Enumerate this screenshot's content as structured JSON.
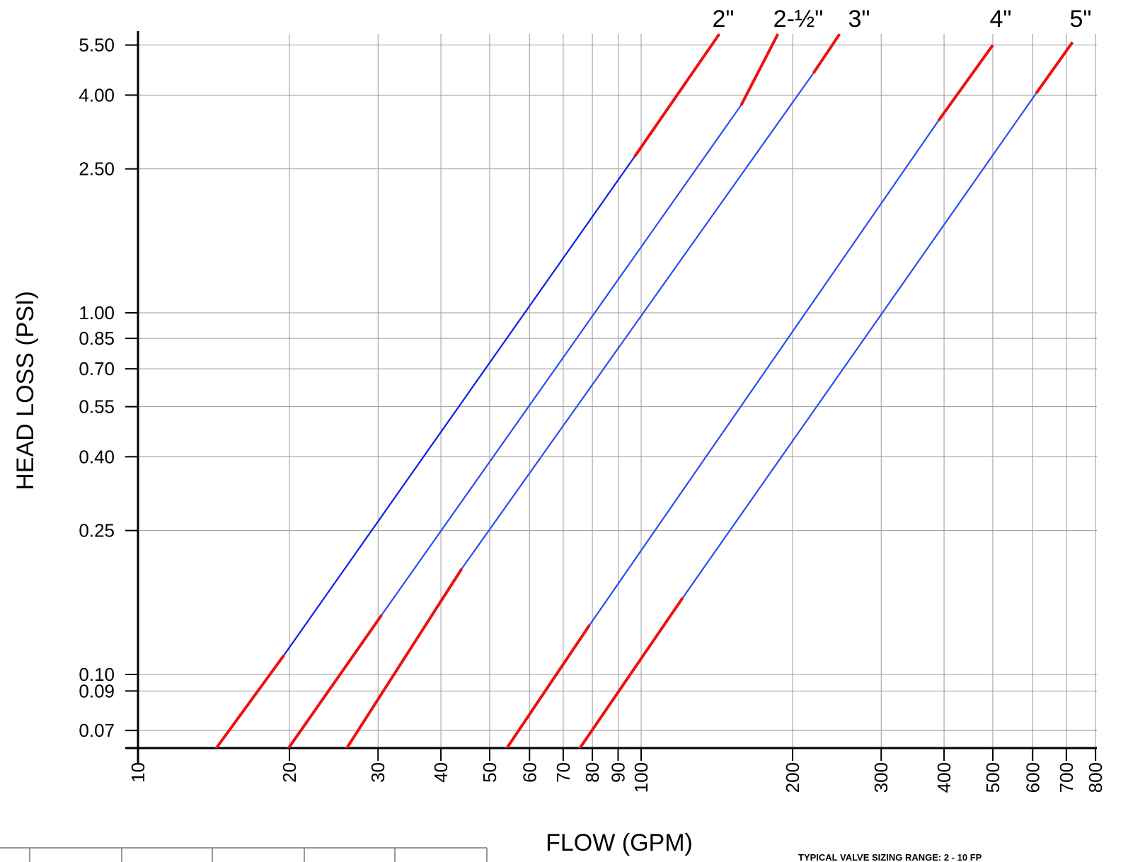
{
  "chart_data": {
    "type": "line",
    "title": "",
    "xlabel": "FLOW (GPM)",
    "ylabel": "HEAD LOSS (PSI)",
    "x_scale": "log",
    "y_scale": "log",
    "xlim": [
      10,
      800
    ],
    "ylim": [
      0.06,
      5.5
    ],
    "grid": true,
    "x_ticks": [
      10,
      20,
      30,
      40,
      50,
      60,
      70,
      80,
      90,
      100,
      200,
      300,
      400,
      500,
      600,
      700,
      800
    ],
    "x_tick_labels": [
      "10",
      "20",
      "30",
      "40",
      "50",
      "60",
      "70",
      "80",
      "90",
      "100",
      "200",
      "300",
      "400",
      "500",
      "600",
      "700",
      "800"
    ],
    "y_ticks": [
      0.07,
      0.09,
      0.1,
      0.25,
      0.4,
      0.55,
      0.7,
      0.85,
      1.0,
      2.5,
      4.0,
      5.5
    ],
    "y_tick_labels": [
      "0.07",
      "0.09",
      "0.10",
      "0.25",
      "0.40",
      "0.55",
      "0.70",
      "0.85",
      "1.00",
      "2.50",
      "4.00",
      "5.50"
    ],
    "in_range_color": "#1a3ff0",
    "out_of_range_color": "#ee1111",
    "series": [
      {
        "label": "2\"",
        "points": [
          [
            14.0,
            0.06
          ],
          [
            19.5,
            0.113
          ],
          [
            97,
            2.7
          ],
          [
            143,
            5.9
          ]
        ],
        "in_range": [
          19.5,
          97
        ],
        "line_color": "#0a1ee6"
      },
      {
        "label": "2-½\"",
        "points": [
          [
            19.5,
            0.06
          ],
          [
            30.5,
            0.146
          ],
          [
            158,
            3.75
          ],
          [
            187,
            5.9
          ]
        ],
        "in_range": [
          30.5,
          158
        ],
        "line_color": "#2a4cf2"
      },
      {
        "label": "3\"",
        "points": [
          [
            25.5,
            0.06
          ],
          [
            44,
            0.196
          ],
          [
            220,
            4.6
          ],
          [
            248,
            5.9
          ]
        ],
        "in_range": [
          44,
          220
        ],
        "line_color": "#2a4cf2"
      },
      {
        "label": "4\"",
        "points": [
          [
            53,
            0.06
          ],
          [
            79,
            0.137
          ],
          [
            390,
            3.4
          ],
          [
            500,
            5.5
          ]
        ],
        "in_range": [
          79,
          390
        ],
        "line_color": "#2a4cf2"
      },
      {
        "label": "5\"",
        "points": [
          [
            74,
            0.06
          ],
          [
            121,
            0.163
          ],
          [
            610,
            4.05
          ],
          [
            720,
            5.6
          ]
        ],
        "in_range": [
          121,
          610
        ],
        "line_color": "#2a4cf2"
      }
    ],
    "footnote": "TYPICAL VALVE SIZING RANGE: 2 - 10 FP"
  }
}
